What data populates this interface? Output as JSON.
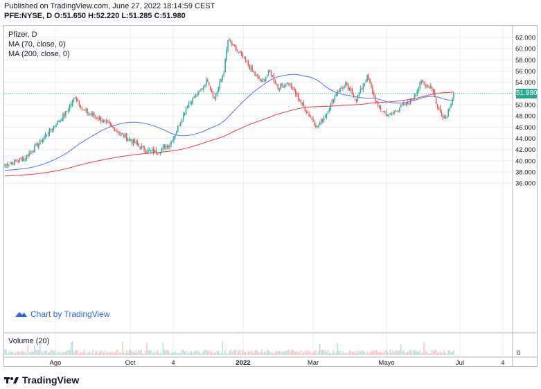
{
  "header": {
    "published": "Published on TradingView.com, June 27, 2022 18:14:59 CEST",
    "symbol": "PFE:NYSE, D",
    "o_label": "O:",
    "o_value": "51.650",
    "h_label": "H:",
    "h_value": "52.220",
    "l_label": "L:",
    "l_value": "51.285",
    "c_label": "C:",
    "c_value": "51.980"
  },
  "legend": {
    "name": "Pfizer, D",
    "ma70": "MA (70, close, 0)",
    "ma200": "MA (200, close, 0)",
    "volume": "Volume (20)"
  },
  "watermark": "Chart by TradingView",
  "footer_brand": "TradingView",
  "last_price": "51.980",
  "colors": {
    "up": "#26a69a",
    "down": "#ef5350",
    "ma70": "#5a6cf0",
    "ma200": "#f23645",
    "last_line": "#22ab94",
    "grid": "#e9ecf2"
  },
  "chart_data": {
    "type": "candlestick",
    "y_axis_ticks": [
      "62.000",
      "60.000",
      "58.000",
      "56.000",
      "54.000",
      "52.000",
      "50.000",
      "48.000",
      "46.000",
      "44.000",
      "42.000",
      "40.000",
      "38.000",
      "36.000"
    ],
    "ylim": [
      36,
      62
    ],
    "x_axis_ticks": [
      "Ago",
      "Oct",
      "4",
      "2022",
      "Mar",
      "Mayo",
      "Jul",
      "4"
    ],
    "anchors": [
      {
        "i": 0,
        "c": 39.3
      },
      {
        "i": 15,
        "c": 40.5
      },
      {
        "i": 30,
        "c": 44.5
      },
      {
        "i": 45,
        "c": 48.5
      },
      {
        "i": 52,
        "c": 51.5
      },
      {
        "i": 58,
        "c": 49.0
      },
      {
        "i": 70,
        "c": 47.5
      },
      {
        "i": 82,
        "c": 45.5
      },
      {
        "i": 92,
        "c": 43.8
      },
      {
        "i": 105,
        "c": 41.8
      },
      {
        "i": 112,
        "c": 41.6
      },
      {
        "i": 122,
        "c": 43.0
      },
      {
        "i": 128,
        "c": 46.0
      },
      {
        "i": 135,
        "c": 50.0
      },
      {
        "i": 143,
        "c": 52.0
      },
      {
        "i": 150,
        "c": 54.5
      },
      {
        "i": 155,
        "c": 51.0
      },
      {
        "i": 162,
        "c": 56.0
      },
      {
        "i": 165,
        "c": 61.5
      },
      {
        "i": 170,
        "c": 60.0
      },
      {
        "i": 176,
        "c": 58.5
      },
      {
        "i": 183,
        "c": 56.0
      },
      {
        "i": 190,
        "c": 54.0
      },
      {
        "i": 196,
        "c": 56.0
      },
      {
        "i": 202,
        "c": 53.0
      },
      {
        "i": 210,
        "c": 54.0
      },
      {
        "i": 216,
        "c": 51.5
      },
      {
        "i": 224,
        "c": 48.5
      },
      {
        "i": 231,
        "c": 46.0
      },
      {
        "i": 238,
        "c": 48.5
      },
      {
        "i": 246,
        "c": 52.5
      },
      {
        "i": 252,
        "c": 53.5
      },
      {
        "i": 260,
        "c": 51.0
      },
      {
        "i": 268,
        "c": 55.0
      },
      {
        "i": 276,
        "c": 49.5
      },
      {
        "i": 284,
        "c": 48.0
      },
      {
        "i": 292,
        "c": 49.5
      },
      {
        "i": 300,
        "c": 50.5
      },
      {
        "i": 308,
        "c": 54.0
      },
      {
        "i": 316,
        "c": 53.0
      },
      {
        "i": 320,
        "c": 49.5
      },
      {
        "i": 326,
        "c": 47.5
      },
      {
        "i": 332,
        "c": 52.0
      }
    ],
    "last_close": 51.98
  }
}
